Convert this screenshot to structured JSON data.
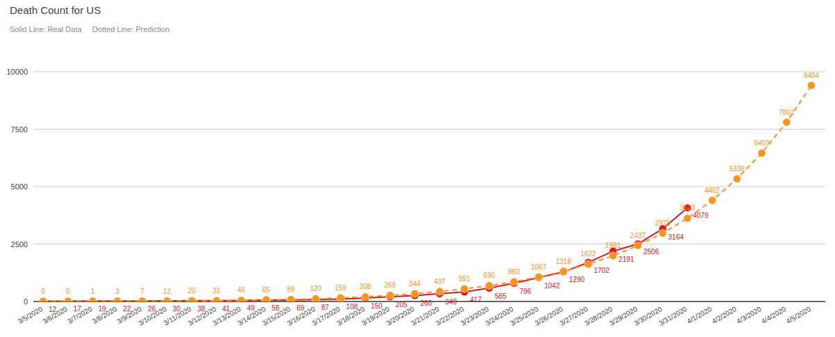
{
  "chart_data": {
    "type": "line",
    "title": "Death Count for US",
    "subtitle": "Solid Line: Real Data     Dotted Line: Prediction",
    "categories": [
      "3/5/2020",
      "3/6/2020",
      "3/7/2020",
      "3/8/2020",
      "3/9/2020",
      "3/10/2020",
      "3/11/2020",
      "3/12/2020",
      "3/13/2020",
      "3/14/2020",
      "3/15/2020",
      "3/16/2020",
      "3/17/2020",
      "3/18/2020",
      "3/19/2020",
      "3/20/2020",
      "3/21/2020",
      "3/22/2020",
      "3/23/2020",
      "3/24/2020",
      "3/25/2020",
      "3/26/2020",
      "3/27/2020",
      "3/28/2020",
      "3/29/2020",
      "3/30/2020",
      "3/31/2020",
      "4/1/2020",
      "4/2/2020",
      "4/3/2020",
      "4/4/2020",
      "4/5/2020"
    ],
    "series": [
      {
        "color": "#d9171c",
        "line_style": "solid",
        "marker": "circle",
        "values": [
          12,
          17,
          19,
          22,
          26,
          30,
          38,
          41,
          49,
          58,
          69,
          87,
          108,
          150,
          205,
          260,
          340,
          417,
          585,
          796,
          1042,
          1290,
          1702,
          2191,
          2506,
          3164,
          4079,
          null,
          null,
          null,
          null,
          null
        ]
      },
      {
        "color": "#f7941d",
        "line_style": "dashed",
        "marker": "circle",
        "values": [
          0,
          0,
          1,
          3,
          7,
          12,
          20,
          31,
          46,
          65,
          89,
          120,
          159,
          208,
          269,
          344,
          437,
          551,
          690,
          860,
          1067,
          1318,
          1622,
          1991,
          2437,
          2975,
          3623,
          4402,
          5338,
          6459,
          7801,
          9404
        ]
      }
    ],
    "ylim": [
      0,
      10000
    ],
    "yticks": [
      0,
      2500,
      5000,
      7500,
      10000
    ],
    "grid": true,
    "data_labels": true
  }
}
